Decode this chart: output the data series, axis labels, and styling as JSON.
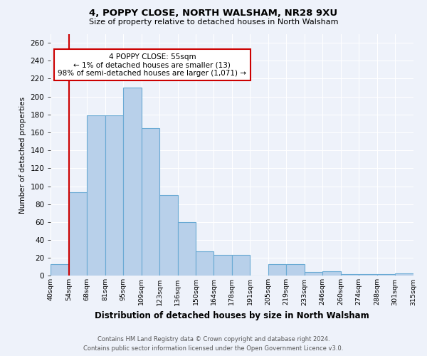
{
  "title1": "4, POPPY CLOSE, NORTH WALSHAM, NR28 9XU",
  "title2": "Size of property relative to detached houses in North Walsham",
  "xlabel": "Distribution of detached houses by size in North Walsham",
  "ylabel": "Number of detached properties",
  "footer1": "Contains HM Land Registry data © Crown copyright and database right 2024.",
  "footer2": "Contains public sector information licensed under the Open Government Licence v3.0.",
  "bar_values": [
    13,
    93,
    179,
    179,
    210,
    165,
    90,
    60,
    27,
    23,
    23,
    0,
    13,
    13,
    4,
    5,
    2,
    2,
    2,
    3
  ],
  "x_labels": [
    "40sqm",
    "54sqm",
    "68sqm",
    "81sqm",
    "95sqm",
    "109sqm",
    "123sqm",
    "136sqm",
    "150sqm",
    "164sqm",
    "178sqm",
    "191sqm",
    "205sqm",
    "219sqm",
    "233sqm",
    "246sqm",
    "260sqm",
    "274sqm",
    "288sqm",
    "301sqm",
    "315sqm"
  ],
  "bar_color": "#b8d0ea",
  "bar_edge_color": "#6aaad4",
  "bg_color": "#eef2fa",
  "grid_color": "#ffffff",
  "red_line_index": 1,
  "red_line_color": "#cc0000",
  "annotation_text": "4 POPPY CLOSE: 55sqm\n← 1% of detached houses are smaller (13)\n98% of semi-detached houses are larger (1,071) →",
  "annotation_box_color": "#ffffff",
  "annotation_box_edge": "#cc0000",
  "ylim": [
    0,
    270
  ],
  "yticks": [
    0,
    20,
    40,
    60,
    80,
    100,
    120,
    140,
    160,
    180,
    200,
    220,
    240,
    260
  ]
}
